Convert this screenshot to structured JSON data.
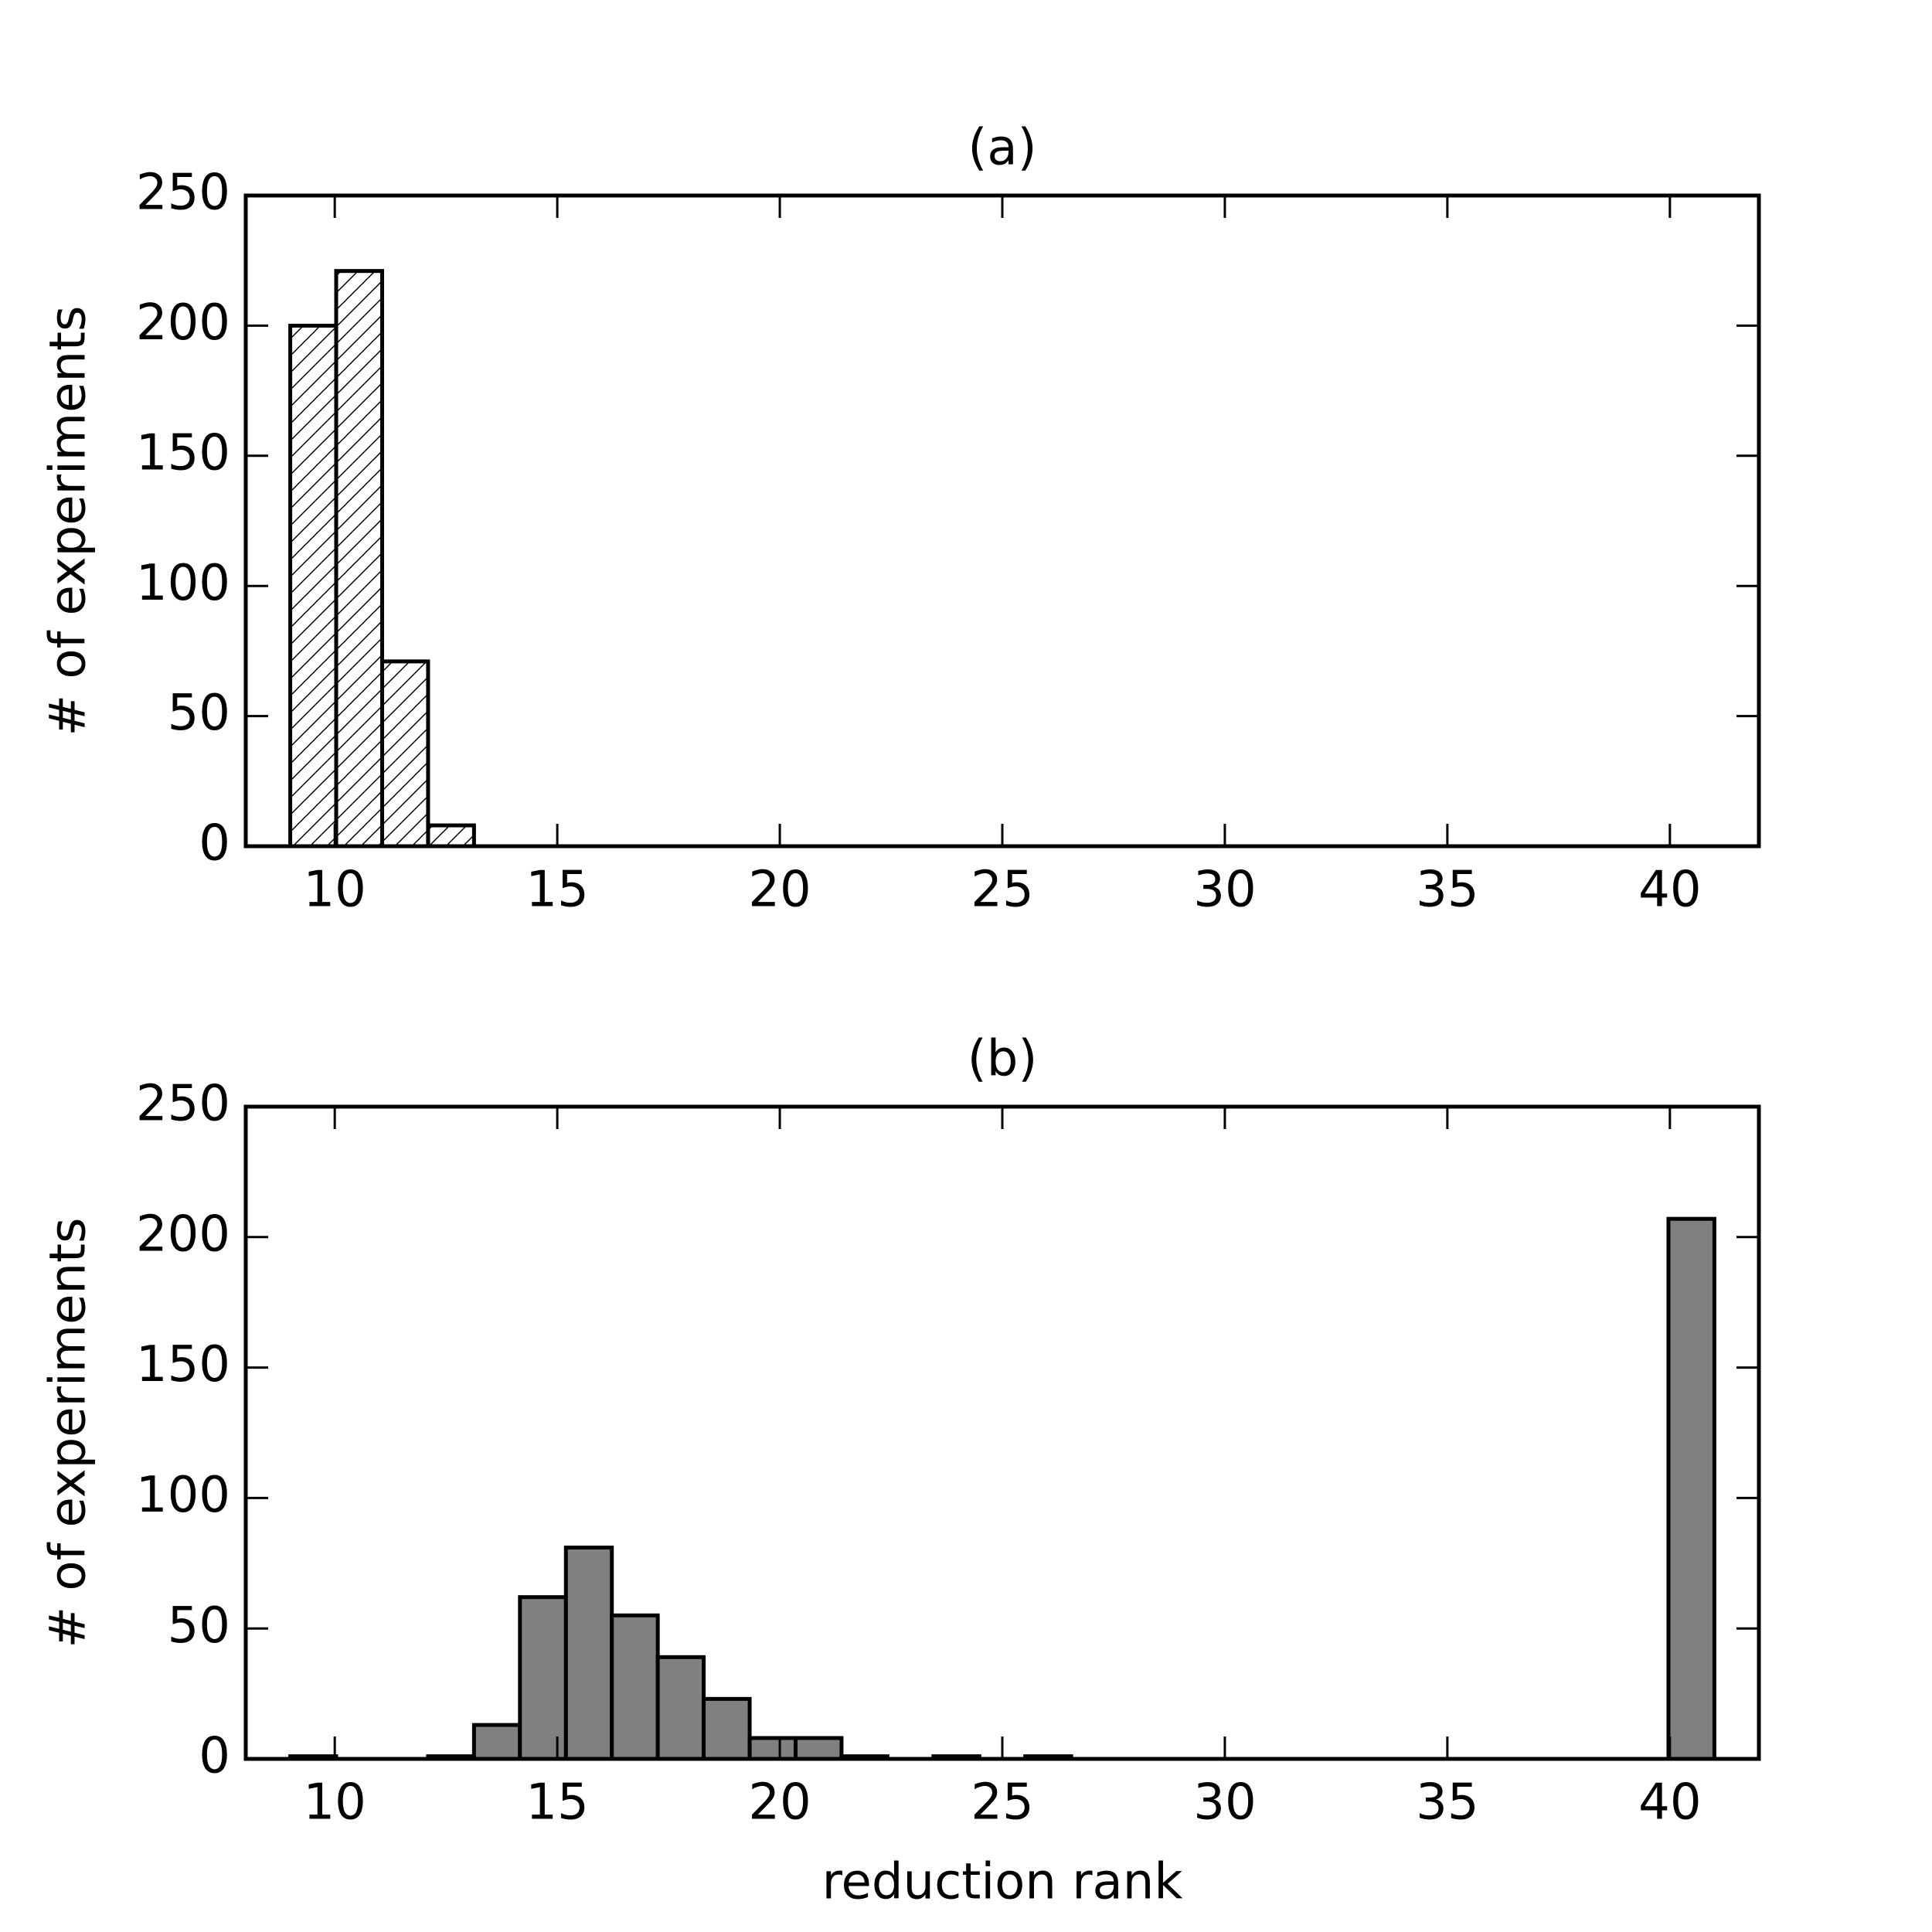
{
  "chart_data": [
    {
      "type": "histogram",
      "title": "(a)",
      "ylabel": "# of experiments",
      "bins": [
        9,
        10.032,
        11.065,
        12.097,
        13.129,
        14.161,
        15.194,
        16.226,
        17.258,
        18.29,
        19.323,
        20.355,
        21.387,
        22.419,
        23.452,
        24.484,
        25.516,
        26.548,
        27.581,
        28.613,
        29.645,
        30.677,
        31.71,
        32.742,
        33.774,
        34.806,
        35.839,
        36.871,
        37.903,
        38.935,
        39.968,
        41
      ],
      "values": [
        200,
        221,
        71,
        8,
        0,
        0,
        0,
        0,
        0,
        0,
        0,
        0,
        0,
        0,
        0,
        0,
        0,
        0,
        0,
        0,
        0,
        0,
        0,
        0,
        0,
        0,
        0,
        0,
        0,
        0,
        0
      ],
      "color": "#ffffff",
      "hatch": true,
      "xlim": [
        8,
        42
      ],
      "xticks": [
        10,
        15,
        20,
        25,
        30,
        35,
        40
      ],
      "ylim": [
        0,
        250
      ],
      "yticks": [
        0,
        50,
        100,
        150,
        200,
        250
      ]
    },
    {
      "type": "histogram",
      "title": "(b)",
      "ylabel": "# of experiments",
      "xlabel": "reduction rank",
      "bins": [
        9,
        10.032,
        11.065,
        12.097,
        13.129,
        14.161,
        15.194,
        16.226,
        17.258,
        18.29,
        19.323,
        20.355,
        21.387,
        22.419,
        23.452,
        24.484,
        25.516,
        26.548,
        27.581,
        28.613,
        29.645,
        30.677,
        31.71,
        32.742,
        33.774,
        34.806,
        35.839,
        36.871,
        37.903,
        38.935,
        39.968,
        41
      ],
      "values": [
        1,
        0,
        0,
        1,
        13,
        62,
        81,
        55,
        39,
        23,
        8,
        8,
        1,
        0,
        1,
        0,
        1,
        0,
        0,
        0,
        0,
        0,
        0,
        0,
        0,
        0,
        0,
        0,
        0,
        0,
        207
      ],
      "color": "#808080",
      "hatch": false,
      "xlim": [
        8,
        42
      ],
      "xticks": [
        10,
        15,
        20,
        25,
        30,
        35,
        40
      ],
      "ylim": [
        0,
        250
      ],
      "yticks": [
        0,
        50,
        100,
        150,
        200,
        250
      ]
    }
  ]
}
